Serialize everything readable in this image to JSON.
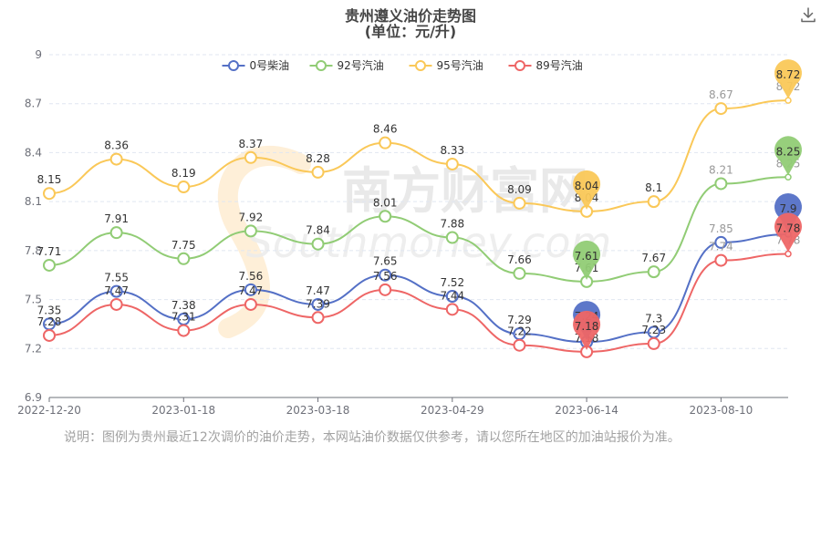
{
  "header": {
    "title_line1": "贵州遵义油价走势图",
    "title_line2": "(单位：元/升)",
    "download_icon": "download-icon"
  },
  "watermark": {
    "text_cn": "南方财富网",
    "text_en": "Southmoney.com"
  },
  "note": "说明：图例为贵州最近12次调价的油价走势，本网站油价数据仅供参考，请以您所在地区的加油站报价为准。",
  "chart_data": {
    "type": "line",
    "title": "贵州遵义油价走势图",
    "subtitle": "(单位：元/升)",
    "x": [
      "2022-12-20",
      "",
      "2023-01-18",
      "",
      "2023-03-18",
      "",
      "2023-04-29",
      "",
      "2023-06-14",
      "",
      "2023-08-10",
      ""
    ],
    "x_tick_labels": [
      "2022-12-20",
      "2023-01-18",
      "2023-03-18",
      "2023-04-29",
      "2023-06-14",
      "2023-08-10"
    ],
    "x_tick_indices": [
      0,
      2,
      4,
      6,
      8,
      10
    ],
    "ylim": [
      6.9,
      9
    ],
    "y_ticks": [
      "6.9",
      "7.2",
      "7.5",
      "7.8",
      "8.1",
      "8.4",
      "8.7",
      "9"
    ],
    "grid": "horizontal dashed",
    "legend_placement": "top-center",
    "series": [
      {
        "name": "0号柴油",
        "color": "#5470c6",
        "values": [
          7.35,
          7.55,
          7.38,
          7.56,
          7.47,
          7.65,
          7.52,
          7.29,
          7.24,
          7.3,
          7.85,
          7.9
        ]
      },
      {
        "name": "92号汽油",
        "color": "#91cc75",
        "values": [
          7.71,
          7.91,
          7.75,
          7.92,
          7.84,
          8.01,
          7.88,
          7.66,
          7.61,
          7.67,
          8.21,
          8.25
        ]
      },
      {
        "name": "95号汽油",
        "color": "#fac858",
        "values": [
          8.15,
          8.36,
          8.19,
          8.37,
          8.28,
          8.46,
          8.33,
          8.09,
          8.04,
          8.1,
          8.67,
          8.72
        ]
      },
      {
        "name": "89号汽油",
        "color": "#ee6666",
        "values": [
          7.28,
          7.47,
          7.31,
          7.47,
          7.39,
          7.56,
          7.44,
          7.22,
          7.18,
          7.23,
          7.74,
          7.78
        ]
      }
    ],
    "markpoints": [
      {
        "series": 0,
        "label": "7.24",
        "index": 8
      },
      {
        "series": 0,
        "label": "7.9",
        "index": 11
      },
      {
        "series": 1,
        "label": "7.61",
        "index": 8
      },
      {
        "series": 1,
        "label": "8.25",
        "index": 11
      },
      {
        "series": 2,
        "label": "8.04",
        "index": 8
      },
      {
        "series": 2,
        "label": "8.72",
        "index": 11
      },
      {
        "series": 3,
        "label": "7.18",
        "index": 8
      },
      {
        "series": 3,
        "label": "7.78",
        "index": 11
      }
    ]
  }
}
